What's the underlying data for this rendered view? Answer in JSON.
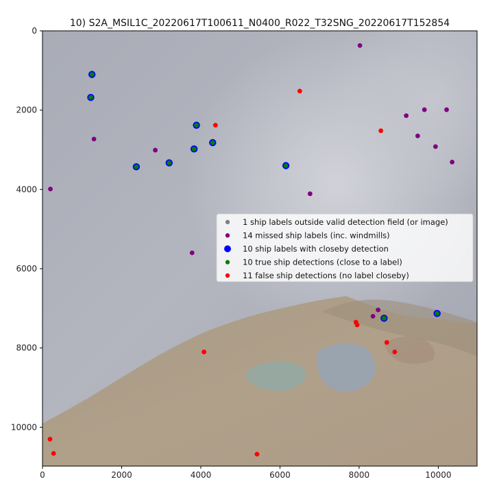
{
  "chart_data": {
    "type": "scatter",
    "title": "10) S2A_MSIL1C_20220617T100611_N0400_R022_T32SNG_20220617T152854",
    "xlabel": "",
    "ylabel": "",
    "xlim": [
      0,
      10980
    ],
    "ylim": [
      10980,
      0
    ],
    "y_inverted": true,
    "grid": false,
    "background": "satellite image",
    "x_ticks": [
      0,
      2000,
      4000,
      6000,
      8000,
      10000
    ],
    "y_ticks": [
      0,
      2000,
      4000,
      6000,
      8000,
      10000
    ],
    "legend_position": "center-right",
    "series": [
      {
        "name": "1 ship labels outside valid detection field (or image)",
        "color": "#808080",
        "marker_size": "small",
        "points": []
      },
      {
        "name": "14 missed ship labels (inc. windmills)",
        "color": "#800080",
        "marker_size": "small",
        "points": [
          [
            8020,
            370
          ],
          [
            200,
            3990
          ],
          [
            1300,
            2730
          ],
          [
            2850,
            3010
          ],
          [
            3780,
            5600
          ],
          [
            6760,
            4110
          ],
          [
            9190,
            2140
          ],
          [
            9650,
            1990
          ],
          [
            10210,
            1990
          ],
          [
            9480,
            2650
          ],
          [
            9930,
            2920
          ],
          [
            10350,
            3310
          ],
          [
            8350,
            7200
          ],
          [
            8480,
            7040
          ]
        ]
      },
      {
        "name": "10 ship labels with closeby detection",
        "color": "#0000ff",
        "marker_size": "large",
        "points": [
          [
            1250,
            1100
          ],
          [
            1220,
            1680
          ],
          [
            2370,
            3430
          ],
          [
            3200,
            3330
          ],
          [
            3830,
            2980
          ],
          [
            3890,
            2380
          ],
          [
            4300,
            2820
          ],
          [
            6150,
            3400
          ],
          [
            8630,
            7250
          ],
          [
            9970,
            7130
          ]
        ]
      },
      {
        "name": "10 true ship detections (close to a label)",
        "color": "#008000",
        "marker_size": "small",
        "points": [
          [
            1250,
            1100
          ],
          [
            1220,
            1680
          ],
          [
            2370,
            3430
          ],
          [
            3200,
            3330
          ],
          [
            3830,
            2980
          ],
          [
            3890,
            2380
          ],
          [
            4300,
            2820
          ],
          [
            6150,
            3400
          ],
          [
            8630,
            7250
          ],
          [
            9970,
            7130
          ]
        ]
      },
      {
        "name": "11 false ship detections (no label closeby)",
        "color": "#ff0000",
        "marker_size": "small",
        "points": [
          [
            6500,
            1520
          ],
          [
            4370,
            2380
          ],
          [
            8550,
            2520
          ],
          [
            7920,
            7350
          ],
          [
            7950,
            7420
          ],
          [
            8700,
            7860
          ],
          [
            8900,
            8100
          ],
          [
            4080,
            8100
          ],
          [
            190,
            10300
          ],
          [
            280,
            10660
          ],
          [
            5420,
            10680
          ]
        ]
      }
    ]
  }
}
